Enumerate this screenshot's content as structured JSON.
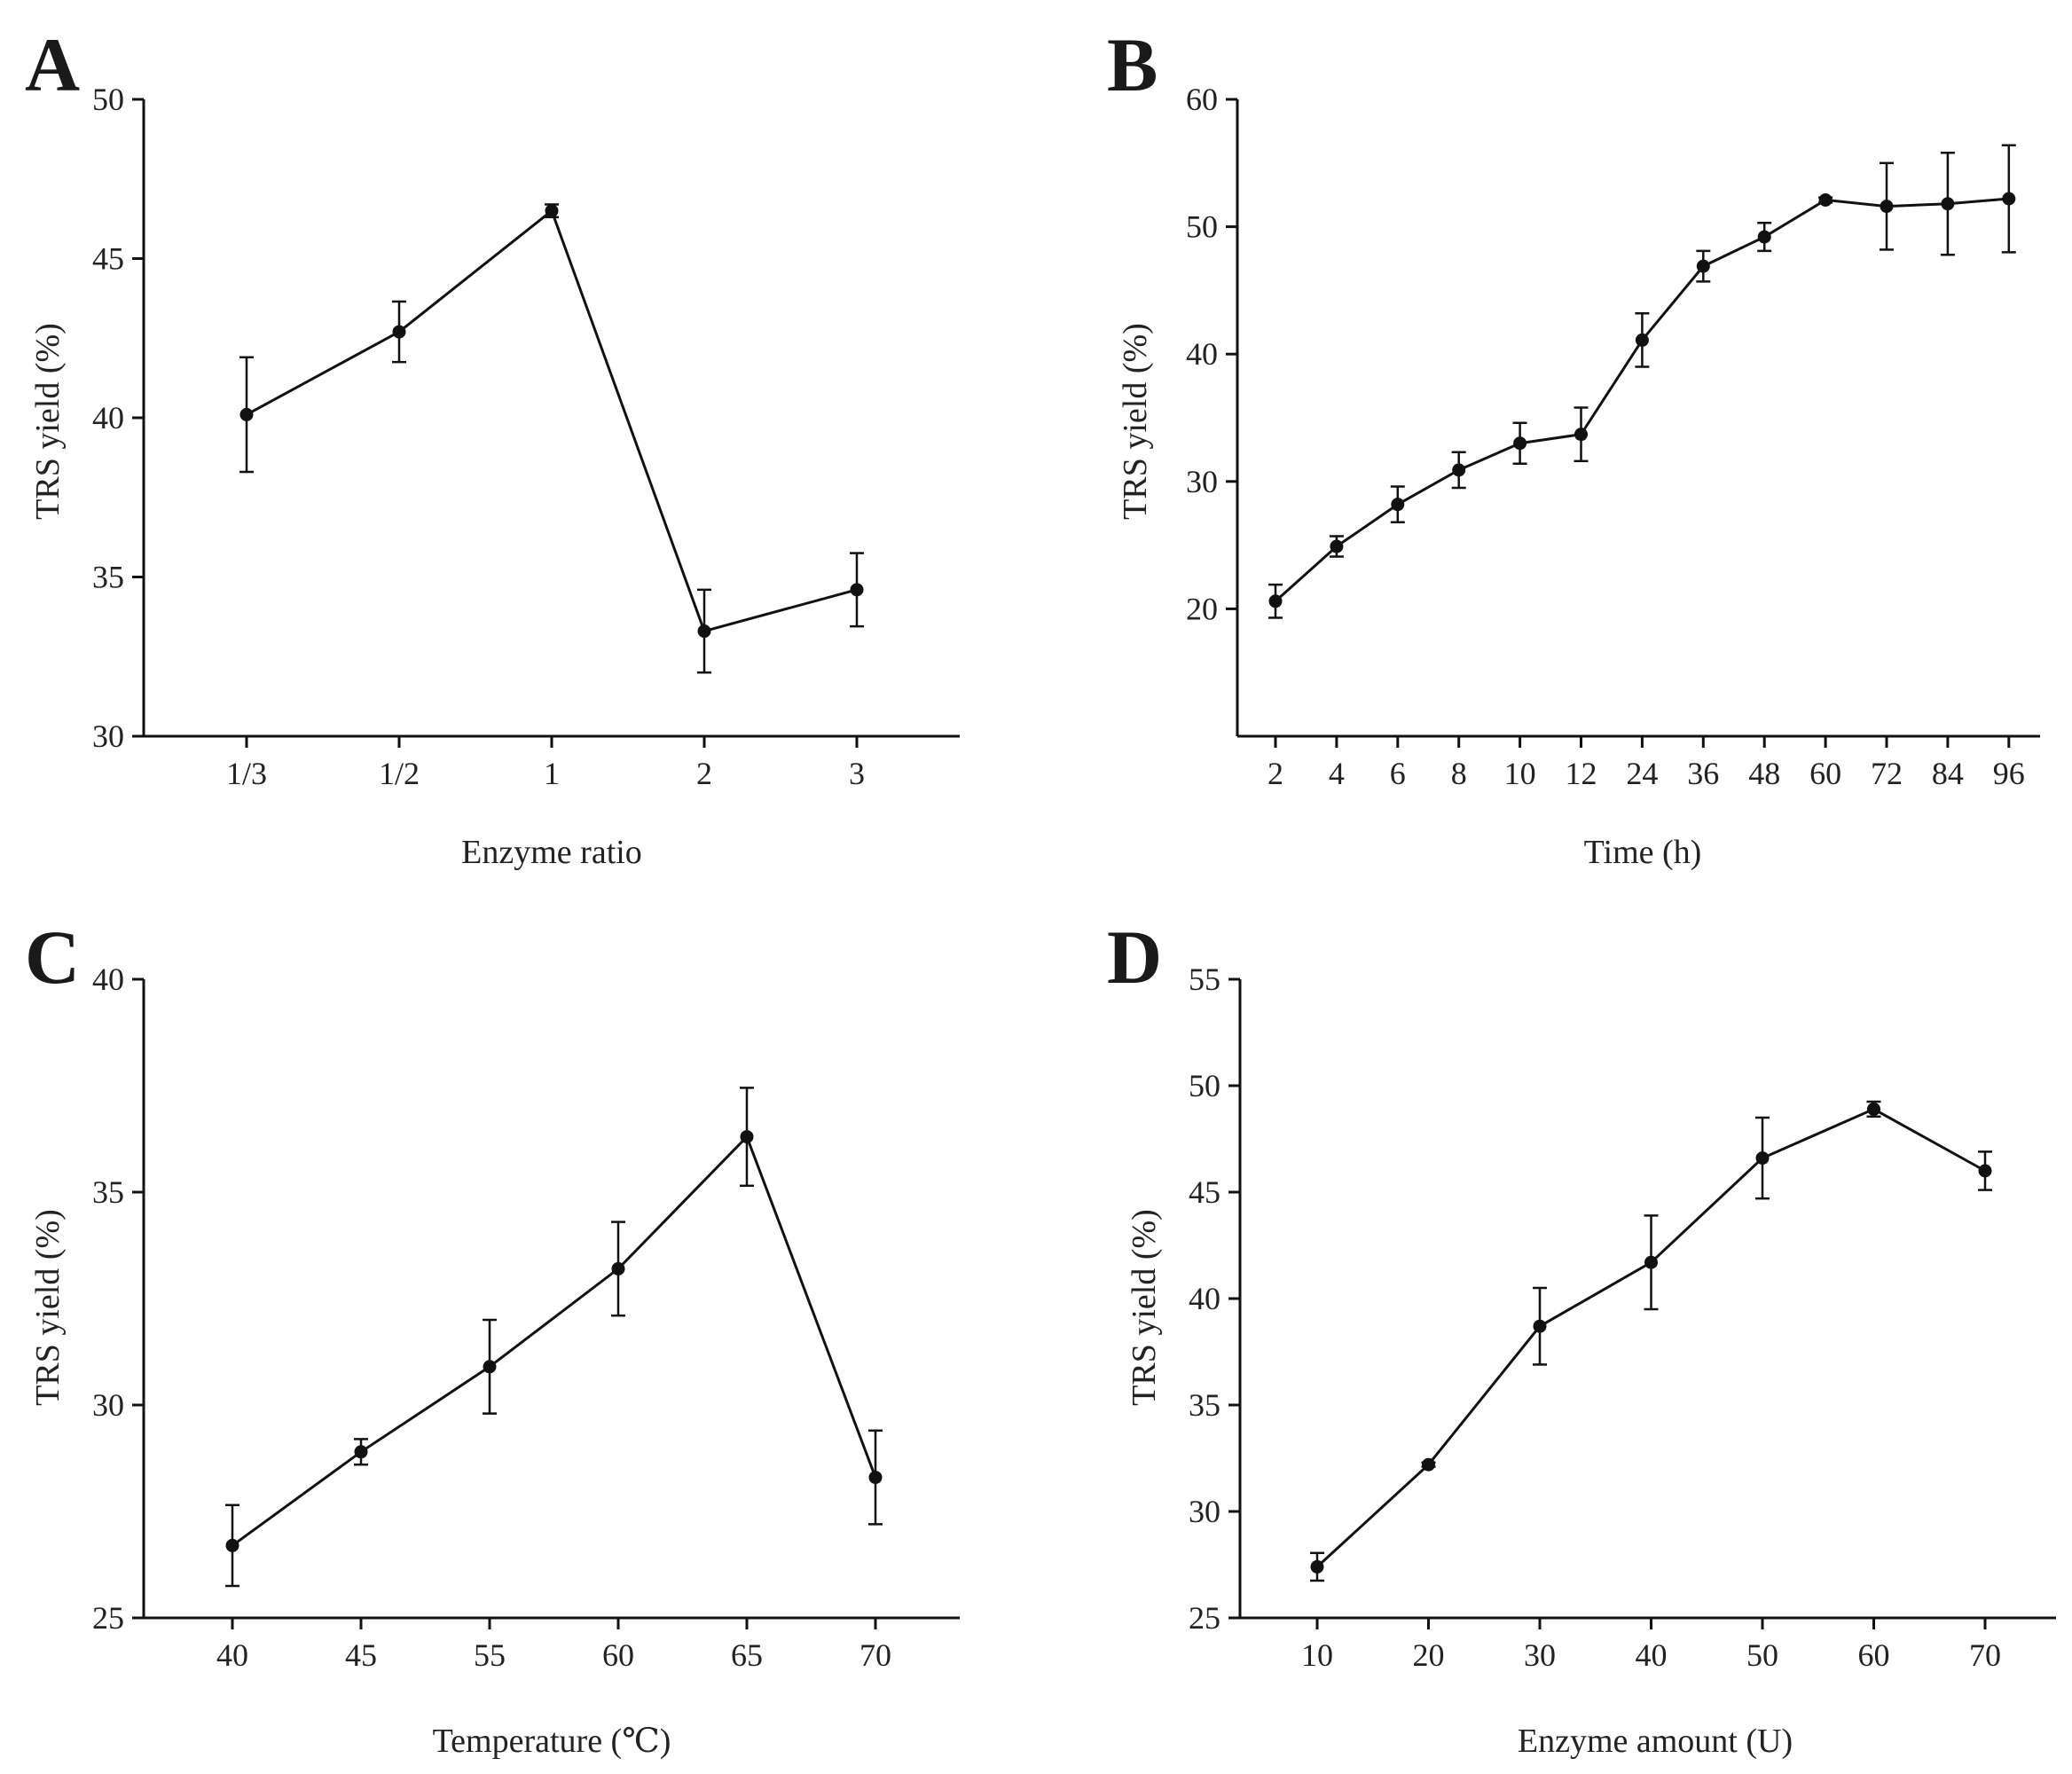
{
  "chart_data": [
    {
      "panel": "A",
      "type": "line",
      "xlabel": "Enzyme ratio",
      "ylabel": "TRS yield (%)",
      "ylim": [
        30,
        50
      ],
      "yticks": [
        30,
        35,
        40,
        45,
        50
      ],
      "categories": [
        "1/3",
        "1/2",
        "1",
        "2",
        "3"
      ],
      "values": [
        40.1,
        42.7,
        46.5,
        33.3,
        34.6
      ],
      "errors": [
        1.8,
        0.95,
        0.2,
        1.3,
        1.15
      ]
    },
    {
      "panel": "B",
      "type": "line",
      "xlabel": "Time (h)",
      "ylabel": "TRS yield (%)",
      "ylim": [
        10,
        60
      ],
      "yticks": [
        20,
        30,
        40,
        50,
        60
      ],
      "categories": [
        "2",
        "4",
        "6",
        "8",
        "10",
        "12",
        "24",
        "36",
        "48",
        "60",
        "72",
        "84",
        "96"
      ],
      "values": [
        20.6,
        24.9,
        28.2,
        30.9,
        33.0,
        33.7,
        41.1,
        46.9,
        49.2,
        52.1,
        51.6,
        51.8,
        52.2
      ],
      "errors": [
        1.3,
        0.8,
        1.4,
        1.4,
        1.6,
        2.1,
        2.1,
        1.2,
        1.1,
        0.2,
        3.4,
        4.0,
        4.2
      ]
    },
    {
      "panel": "C",
      "type": "line",
      "xlabel": "Temperature (℃)",
      "ylabel": "TRS yield (%)",
      "ylim": [
        25,
        40
      ],
      "yticks": [
        25,
        30,
        35,
        40
      ],
      "categories": [
        "40",
        "45",
        "55",
        "60",
        "65",
        "70"
      ],
      "values": [
        26.7,
        28.9,
        30.9,
        33.2,
        36.3,
        28.3
      ],
      "errors": [
        0.95,
        0.3,
        1.1,
        1.1,
        1.15,
        1.1
      ]
    },
    {
      "panel": "D",
      "type": "line",
      "xlabel": "Enzyme amount (U)",
      "ylabel": "TRS yield (%)",
      "ylim": [
        25,
        55
      ],
      "yticks": [
        25,
        30,
        35,
        40,
        45,
        50,
        55
      ],
      "categories": [
        "10",
        "20",
        "30",
        "40",
        "50",
        "60",
        "70"
      ],
      "values": [
        27.4,
        32.2,
        38.7,
        41.7,
        46.6,
        48.9,
        46.0
      ],
      "errors": [
        0.65,
        0.1,
        1.8,
        2.2,
        1.9,
        0.35,
        0.9
      ]
    }
  ]
}
